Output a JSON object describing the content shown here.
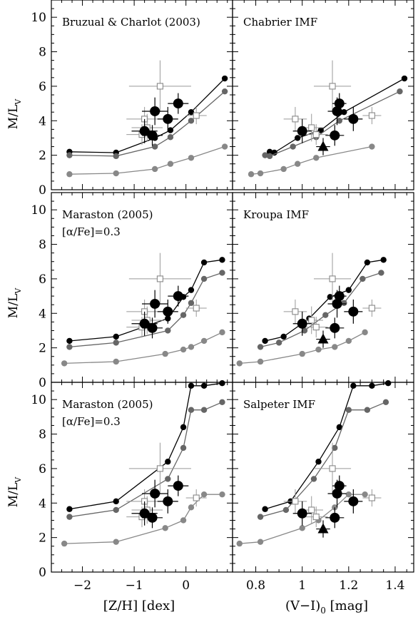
{
  "chart_data": {
    "type": "scatter",
    "ylabel_main": "M/L",
    "ylabel_sub": "V",
    "xlabel_left": "[Z/H] [dex]",
    "xlabel_right": "(V−I)",
    "xlabel_right_sub": "0",
    "xlabel_right_unit": " [mag]",
    "xlim_left": [
      -2.6,
      0.9
    ],
    "xlim_right": [
      0.7,
      1.48
    ],
    "ylim": [
      0,
      11
    ],
    "xticks_left": [
      "−2",
      "−1",
      "0"
    ],
    "xticks_left_values": [
      -2,
      -1,
      0
    ],
    "xticks_right": [
      "0.8",
      "1",
      "1.2",
      "1.4"
    ],
    "xticks_right_values": [
      0.8,
      1.0,
      1.2,
      1.4
    ],
    "yticks": [
      "0",
      "2",
      "4",
      "6",
      "8",
      "10"
    ],
    "yticks_values": [
      0,
      2,
      4,
      6,
      8,
      10
    ],
    "model_colors": [
      "#000000",
      "#666666",
      "#888888"
    ],
    "rows": [
      {
        "left_title": "Bruzual & Charlot (2003)",
        "left_subtitle": "",
        "right_title": "Chabrier IMF",
        "models": [
          {
            "color": "#000000",
            "z": [
              -2.25,
              -1.35,
              -0.6,
              -0.3,
              0.1,
              0.75
            ],
            "vi": [
              0.86,
              0.88,
              0.98,
              1.08,
              1.18,
              1.44
            ],
            "ml": [
              2.2,
              2.15,
              3.0,
              3.45,
              4.5,
              6.45
            ]
          },
          {
            "color": "#666666",
            "z": [
              -2.25,
              -1.35,
              -0.6,
              -0.3,
              0.1,
              0.75
            ],
            "vi": [
              0.84,
              0.86,
              0.96,
              1.06,
              1.16,
              1.42
            ],
            "ml": [
              2.0,
              1.95,
              2.5,
              3.05,
              4.0,
              5.7
            ]
          },
          {
            "color": "#888888",
            "z": [
              -2.25,
              -1.35,
              -0.6,
              -0.3,
              0.1,
              0.75
            ],
            "vi": [
              0.78,
              0.82,
              0.92,
              0.98,
              1.06,
              1.3
            ],
            "ml": [
              0.9,
              0.95,
              1.2,
              1.5,
              1.85,
              2.5
            ]
          }
        ]
      },
      {
        "left_title": "Maraston (2005)",
        "left_subtitle": "[α/Fe]=0.3",
        "right_title": "Kroupa IMF",
        "models": [
          {
            "color": "#000000",
            "z": [
              -2.25,
              -1.35,
              -0.35,
              -0.05,
              0.1,
              0.35,
              0.7
            ],
            "vi": [
              0.84,
              0.92,
              1.03,
              1.12,
              1.2,
              1.28,
              1.35
            ],
            "ml": [
              2.4,
              2.65,
              3.7,
              4.95,
              5.35,
              6.95,
              7.1
            ]
          },
          {
            "color": "#666666",
            "z": [
              -2.25,
              -1.35,
              -0.35,
              -0.05,
              0.1,
              0.35,
              0.7
            ],
            "vi": [
              0.82,
              0.9,
              1.01,
              1.1,
              1.18,
              1.26,
              1.34
            ],
            "ml": [
              2.05,
              2.3,
              3.0,
              3.9,
              4.6,
              6.0,
              6.35
            ]
          },
          {
            "color": "#888888",
            "z": [
              -2.35,
              -1.35,
              -0.4,
              -0.05,
              0.1,
              0.35,
              0.7
            ],
            "vi": [
              0.73,
              0.82,
              1.0,
              1.07,
              1.14,
              1.2,
              1.27
            ],
            "ml": [
              1.1,
              1.2,
              1.65,
              1.9,
              2.05,
              2.4,
              2.9
            ]
          }
        ]
      },
      {
        "left_title": "Maraston (2005)",
        "left_subtitle": "[α/Fe]=0.3",
        "right_title": "Salpeter IMF",
        "models": [
          {
            "color": "#000000",
            "z": [
              -2.25,
              -1.35,
              -0.35,
              -0.05,
              0.1,
              0.35,
              0.7
            ],
            "vi": [
              0.84,
              0.95,
              1.07,
              1.16,
              1.22,
              1.3,
              1.37
            ],
            "ml": [
              3.65,
              4.1,
              6.4,
              8.4,
              10.8,
              10.8,
              10.95
            ]
          },
          {
            "color": "#666666",
            "z": [
              -2.25,
              -1.35,
              -0.35,
              -0.05,
              0.1,
              0.35,
              0.7
            ],
            "vi": [
              0.82,
              0.93,
              1.05,
              1.14,
              1.2,
              1.28,
              1.36
            ],
            "ml": [
              3.2,
              3.6,
              5.4,
              7.2,
              9.4,
              9.4,
              9.85
            ]
          },
          {
            "color": "#888888",
            "z": [
              -2.35,
              -1.35,
              -0.4,
              -0.05,
              0.1,
              0.35,
              0.7
            ],
            "vi": [
              0.73,
              0.82,
              1.0,
              1.07,
              1.14,
              1.2,
              1.27
            ],
            "ml": [
              1.65,
              1.75,
              2.55,
              3.0,
              3.75,
              4.5,
              4.5
            ]
          }
        ]
      }
    ],
    "filled_points": [
      {
        "z": -0.6,
        "vi": 1.15,
        "ml": 4.55,
        "ez": 0.25,
        "evi": 0.04,
        "eml": 0.8
      },
      {
        "z": -0.15,
        "vi": 1.16,
        "ml": 5.0,
        "ez": 0.2,
        "evi": 0.03,
        "eml": 0.6
      },
      {
        "z": -0.35,
        "vi": 1.22,
        "ml": 4.1,
        "ez": 0.2,
        "evi": 0.04,
        "eml": 0.7
      },
      {
        "z": -0.65,
        "vi": 1.14,
        "ml": 3.15,
        "ez": 0.2,
        "evi": 0.04,
        "eml": 0.6
      },
      {
        "z": -0.8,
        "vi": 1.0,
        "ml": 3.4,
        "ez": 0.25,
        "evi": 0.04,
        "eml": 0.7
      }
    ],
    "open_points": [
      {
        "z": -0.5,
        "vi": 1.13,
        "ml": 6.0,
        "ez": 0.6,
        "evi": 0.08,
        "eml": 1.5
      },
      {
        "z": -0.8,
        "vi": 0.97,
        "ml": 4.1,
        "ez": 0.35,
        "evi": 0.05,
        "eml": 0.7
      },
      {
        "z": -0.75,
        "vi": 1.04,
        "ml": 3.6,
        "ez": 0.3,
        "evi": 0.05,
        "eml": 0.8
      },
      {
        "z": -0.85,
        "vi": 1.06,
        "ml": 3.2,
        "ez": 0.3,
        "evi": 0.05,
        "eml": 0.6
      },
      {
        "z": 0.2,
        "vi": 1.3,
        "ml": 4.3,
        "ez": 0.2,
        "evi": 0.04,
        "eml": 0.5
      }
    ],
    "triangle_point": {
      "vi": 1.09,
      "ml": 2.5,
      "evi": 0.03,
      "eml": 0.5
    }
  }
}
